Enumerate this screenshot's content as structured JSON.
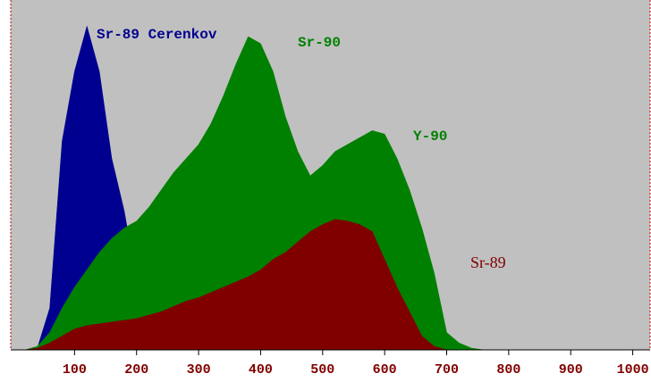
{
  "chart_data": {
    "type": "area",
    "x": [
      0,
      20,
      40,
      60,
      80,
      100,
      120,
      140,
      160,
      180,
      200,
      220,
      240,
      260,
      280,
      300,
      320,
      340,
      360,
      380,
      400,
      420,
      440,
      460,
      480,
      500,
      520,
      540,
      560,
      580,
      600,
      620,
      640,
      660,
      680,
      700,
      720,
      740,
      760,
      780,
      800
    ],
    "series": [
      {
        "name": "Sr-89 Cerenkov",
        "color": "#000090",
        "values": [
          0,
          0,
          0.5,
          12,
          60,
          80,
          93,
          80,
          55,
          40,
          20,
          5,
          0,
          0,
          0,
          0,
          0,
          0,
          0,
          0,
          0,
          0,
          0,
          0,
          0,
          0,
          0,
          0,
          0,
          0,
          0,
          0,
          0,
          0,
          0,
          0,
          0,
          0,
          0,
          0,
          0
        ]
      },
      {
        "name": "Sr-90",
        "color": "#008000",
        "values": [
          0,
          0,
          1,
          5,
          12,
          18,
          23,
          28,
          32,
          35,
          37,
          41,
          46,
          51,
          55,
          59,
          65,
          73,
          82,
          90,
          88,
          80,
          67,
          57,
          50,
          53,
          57,
          59,
          61,
          63,
          62,
          55,
          46,
          35,
          22,
          5,
          2,
          0.5,
          0,
          0,
          0
        ]
      },
      {
        "name": "Sr-89",
        "color": "#800000",
        "values": [
          0,
          0,
          0.5,
          2,
          4,
          6,
          7,
          7.5,
          8,
          8.5,
          9,
          10,
          11,
          12.5,
          14,
          15,
          16.5,
          18,
          19.5,
          21,
          23,
          26,
          28,
          31,
          34,
          36,
          37.5,
          37,
          36,
          34,
          26,
          18,
          11,
          4,
          1,
          0,
          0,
          0,
          0,
          0,
          0
        ]
      }
    ],
    "annotations": [
      {
        "text": "Sr-89 Cerenkov",
        "color": "#000090"
      },
      {
        "text": "Sr-90",
        "color": "#008000"
      },
      {
        "text": "Y-90",
        "color": "#008000"
      },
      {
        "text": "Sr-89",
        "color": "#800000"
      }
    ],
    "xlim": [
      0,
      1028
    ],
    "ylim": [
      0,
      100
    ],
    "xticks": [
      100,
      200,
      300,
      400,
      500,
      600,
      700,
      800,
      900,
      1000
    ],
    "background": "#c0c0c0"
  }
}
